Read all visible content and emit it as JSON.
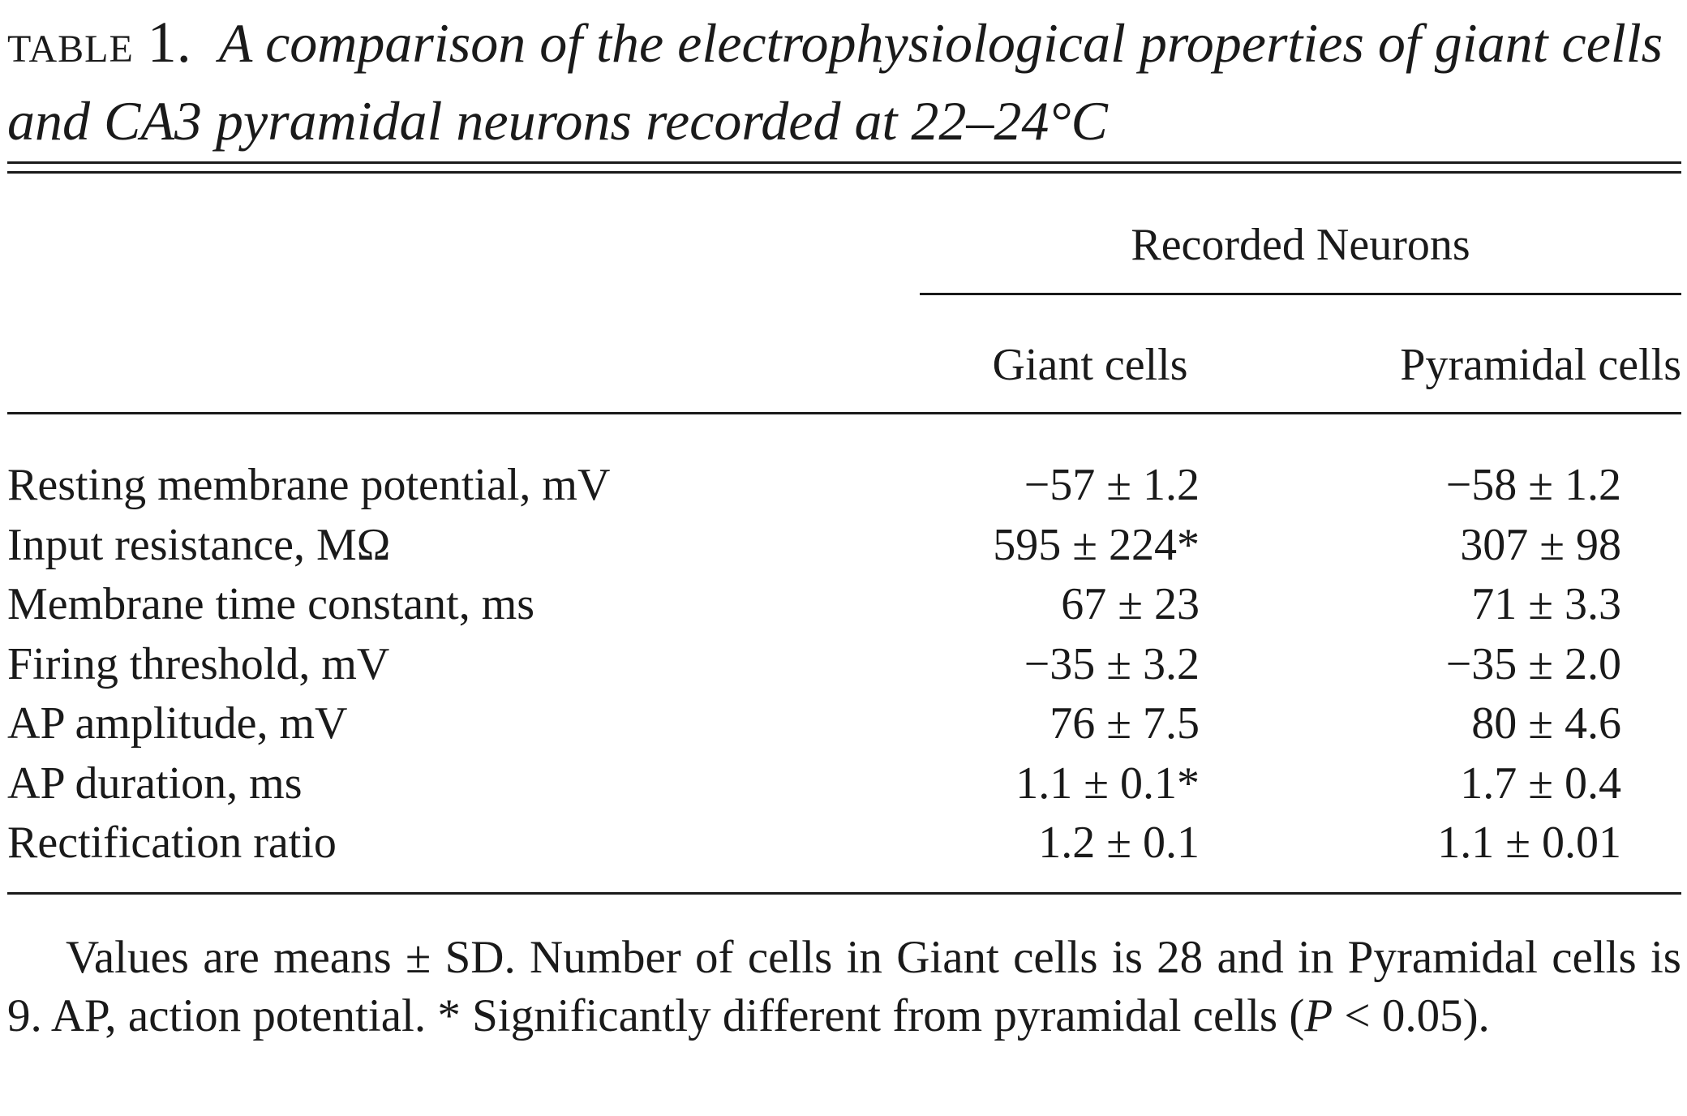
{
  "caption": {
    "label": "table",
    "number": "1.",
    "title": "A comparison of the electrophysiological properties of giant cells and CA3 pyramidal neurons recorded at 22–24°C"
  },
  "table": {
    "group_header": "Recorded Neurons",
    "columns": [
      "Giant cells",
      "Pyramidal cells"
    ],
    "rows": [
      {
        "parameter": "Resting membrane potential, mV",
        "giant": "−57 ± 1.2",
        "pyramidal": "−58 ± 1.2"
      },
      {
        "parameter": "Input resistance, MΩ",
        "giant": "595 ± 224*",
        "pyramidal": "307 ± 98"
      },
      {
        "parameter": "Membrane time constant, ms",
        "giant": "67 ± 23",
        "pyramidal": "71 ± 3.3"
      },
      {
        "parameter": "Firing threshold, mV",
        "giant": "−35 ± 3.2",
        "pyramidal": "−35 ± 2.0"
      },
      {
        "parameter": "AP amplitude, mV",
        "giant": "76 ± 7.5",
        "pyramidal": "80 ± 4.6"
      },
      {
        "parameter": "AP duration, ms",
        "giant": "1.1 ± 0.1*",
        "pyramidal": "1.7 ± 0.4"
      },
      {
        "parameter": "Rectification ratio",
        "giant": "1.2 ± 0.1",
        "pyramidal": "1.1 ± 0.01"
      }
    ]
  },
  "footnote": {
    "text_before_p": "Values are means ± SD. Number of cells in Giant cells is 28 and in Pyramidal cells is 9. AP, action potential. * Significantly different from pyramidal cells (",
    "p_symbol": "P",
    "text_after_p": " < 0.05)."
  }
}
